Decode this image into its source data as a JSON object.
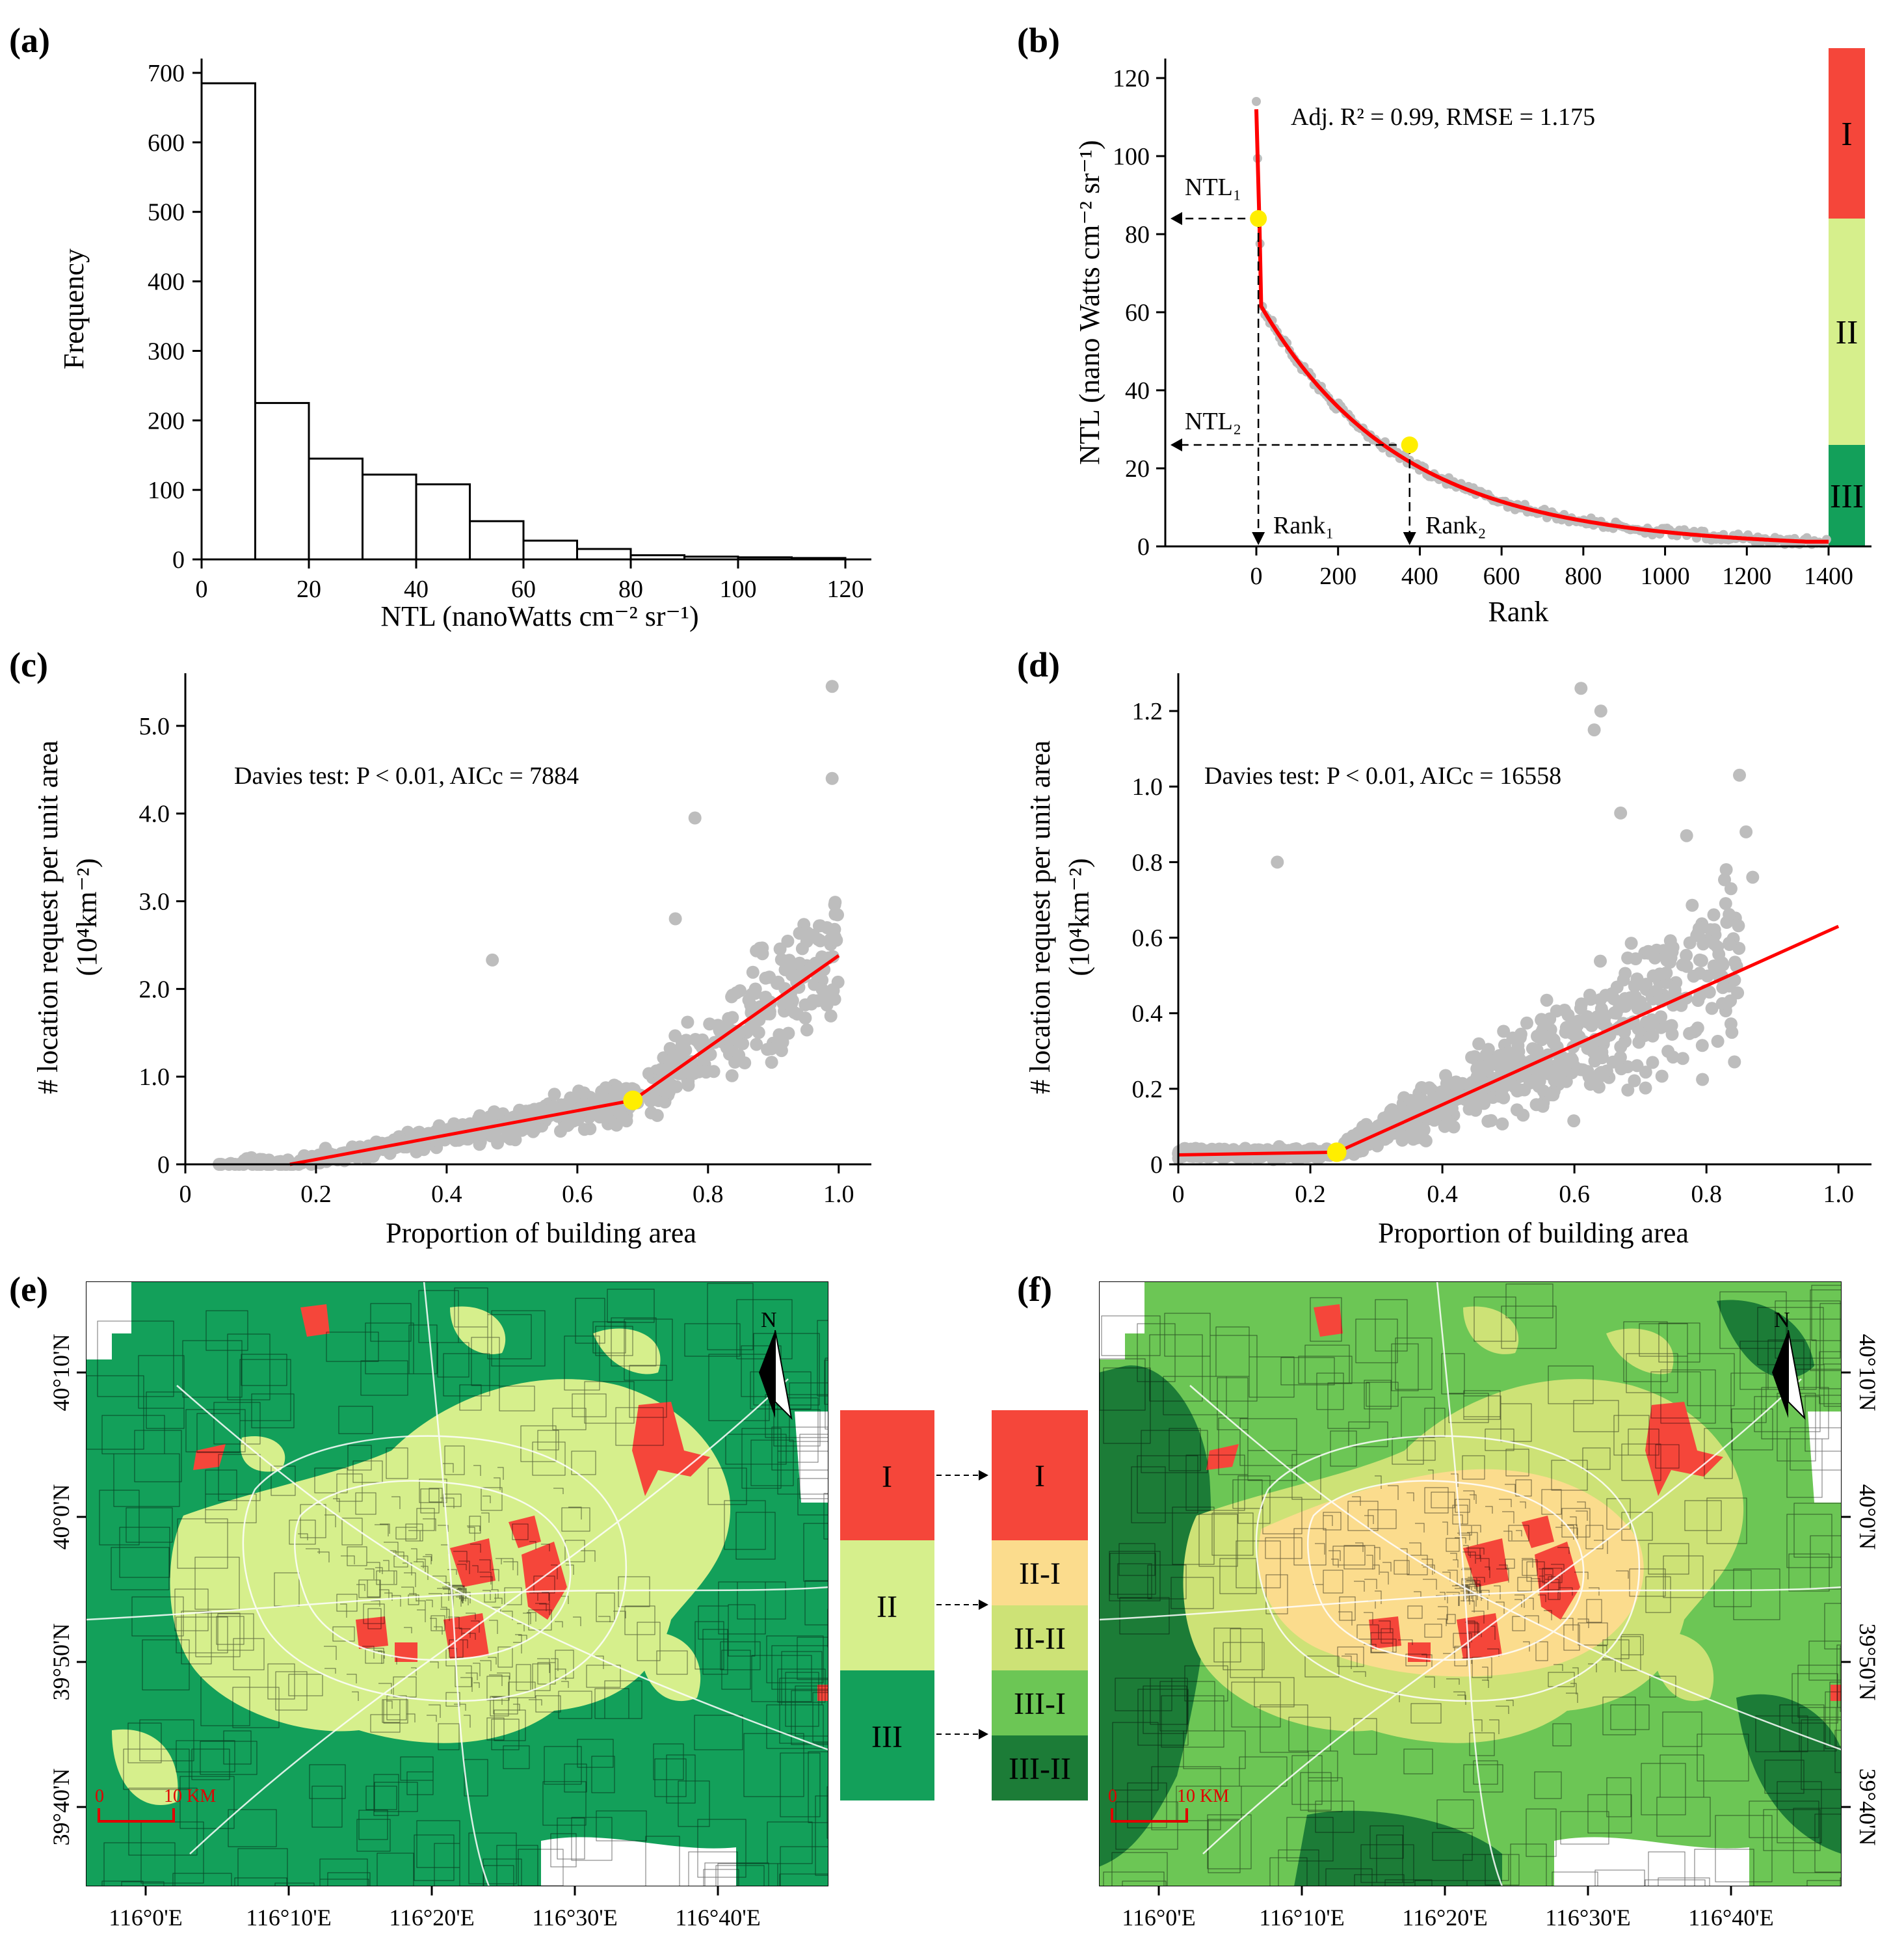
{
  "panel_labels": {
    "a": "(a)",
    "b": "(b)",
    "c": "(c)",
    "d": "(d)",
    "e": "(e)",
    "f": "(f)"
  },
  "chart_data": [
    {
      "id": "a",
      "type": "bar",
      "title": "",
      "xlabel": "NTL (nanoWatts cm⁻² sr⁻¹)",
      "ylabel": "Frequency",
      "bin_edges": [
        0,
        10,
        20,
        30,
        40,
        50,
        60,
        70,
        80,
        90,
        100,
        110,
        120
      ],
      "values": [
        685,
        225,
        145,
        122,
        108,
        55,
        27,
        15,
        6,
        4,
        3,
        2
      ],
      "xlim": [
        0,
        120
      ],
      "ylim": [
        0,
        700
      ],
      "xticks": [
        "0",
        "20",
        "40",
        "60",
        "80",
        "100",
        "120"
      ],
      "yticks": [
        "0",
        "100",
        "200",
        "300",
        "400",
        "500",
        "600",
        "700"
      ],
      "grid": false,
      "bar_fill": "#ffffff",
      "bar_stroke": "#000000"
    },
    {
      "id": "b",
      "type": "scatter",
      "xlabel": "Rank",
      "ylabel": "NTL (nano Watts cm⁻² sr⁻¹)",
      "xlim": [
        -240,
        1440
      ],
      "ylim": [
        0,
        120
      ],
      "xticks": [
        "0",
        "200",
        "400",
        "600",
        "800",
        "1000",
        "1200",
        "1400"
      ],
      "yticks": [
        "0",
        "20",
        "40",
        "60",
        "80",
        "100",
        "120"
      ],
      "annotation": "Adj. R² = 0.99, RMSE = 1.175",
      "breakpoints": [
        {
          "rank": 5,
          "ntl": 84
        },
        {
          "rank": 375,
          "ntl": 26
        }
      ],
      "callouts": {
        "ntl1": "NTL₁",
        "ntl2": "NTL₂",
        "rank1": "Rank₁",
        "rank2": "Rank₂"
      },
      "zones": [
        {
          "label": "I",
          "from": 84,
          "to": 120,
          "color": "#f5463a"
        },
        {
          "label": "II",
          "from": 26,
          "to": 84,
          "color": "#d6ef8c"
        },
        {
          "label": "III",
          "from": 0,
          "to": 26,
          "color": "#13a05a"
        }
      ],
      "series": [
        {
          "name": "observed",
          "color": "#bdbdbd",
          "kind": "points"
        },
        {
          "name": "fit",
          "color": "#ff0000",
          "kind": "line"
        }
      ]
    },
    {
      "id": "c",
      "type": "scatter",
      "xlabel": "Proportion of building area",
      "ylabel": "# location request per unit area",
      "ylabel2": "(10⁴km⁻²)",
      "annotation": "Davies test: P < 0.01, AICc = 7884",
      "xlim": [
        0,
        1.05
      ],
      "ylim": [
        0,
        5.6
      ],
      "xticks": [
        "0",
        "0.2",
        "0.4",
        "0.6",
        "0.8",
        "1.0"
      ],
      "yticks": [
        "0",
        "1.0",
        "2.0",
        "3.0",
        "4.0",
        "5.0"
      ],
      "fit_segments": [
        [
          0.16,
          0
        ],
        [
          0.685,
          0.73
        ],
        [
          1.0,
          2.38
        ]
      ],
      "breakpoint": {
        "x": 0.685,
        "y": 0.73
      }
    },
    {
      "id": "d",
      "type": "scatter",
      "xlabel": "Proportion of building area",
      "ylabel": "# location request per unit area",
      "ylabel2": "(10⁴km⁻²)",
      "annotation": "Davies test: P < 0.01, AICc = 16558",
      "xlim": [
        0,
        1.05
      ],
      "ylim": [
        0,
        1.3
      ],
      "xticks": [
        "0",
        "0.2",
        "0.4",
        "0.6",
        "0.8",
        "1.0"
      ],
      "yticks": [
        "0",
        "0.2",
        "0.4",
        "0.6",
        "0.8",
        "1.0",
        "1.2"
      ],
      "fit_segments": [
        [
          0,
          0.025
        ],
        [
          0.24,
          0.032
        ],
        [
          1.0,
          0.63
        ]
      ],
      "breakpoint": {
        "x": 0.24,
        "y": 0.032
      }
    }
  ],
  "maps": {
    "lon_ticks": [
      "116°0'E",
      "116°10'E",
      "116°20'E",
      "116°30'E",
      "116°40'E"
    ],
    "lat_ticks": [
      "40°10'N",
      "40°0'N",
      "39°50'N",
      "39°40'N"
    ],
    "scale_zero": "0",
    "scale_label": "10 KM",
    "north": "N"
  },
  "legend_left": [
    {
      "label": "I",
      "color": "#f5463a"
    },
    {
      "label": "II",
      "color": "#d6ef8c"
    },
    {
      "label": "III",
      "color": "#13a05a"
    }
  ],
  "legend_right": [
    {
      "label": "I",
      "color": "#f5463a"
    },
    {
      "label": "II-I",
      "color": "#fbdc8d"
    },
    {
      "label": "II-II",
      "color": "#cde276"
    },
    {
      "label": "III-I",
      "color": "#6cc655"
    },
    {
      "label": "III-II",
      "color": "#1c7c37"
    }
  ],
  "colors": {
    "red": "#ff0000",
    "yellow": "#ffee00",
    "grey": "#bdbdbd"
  }
}
